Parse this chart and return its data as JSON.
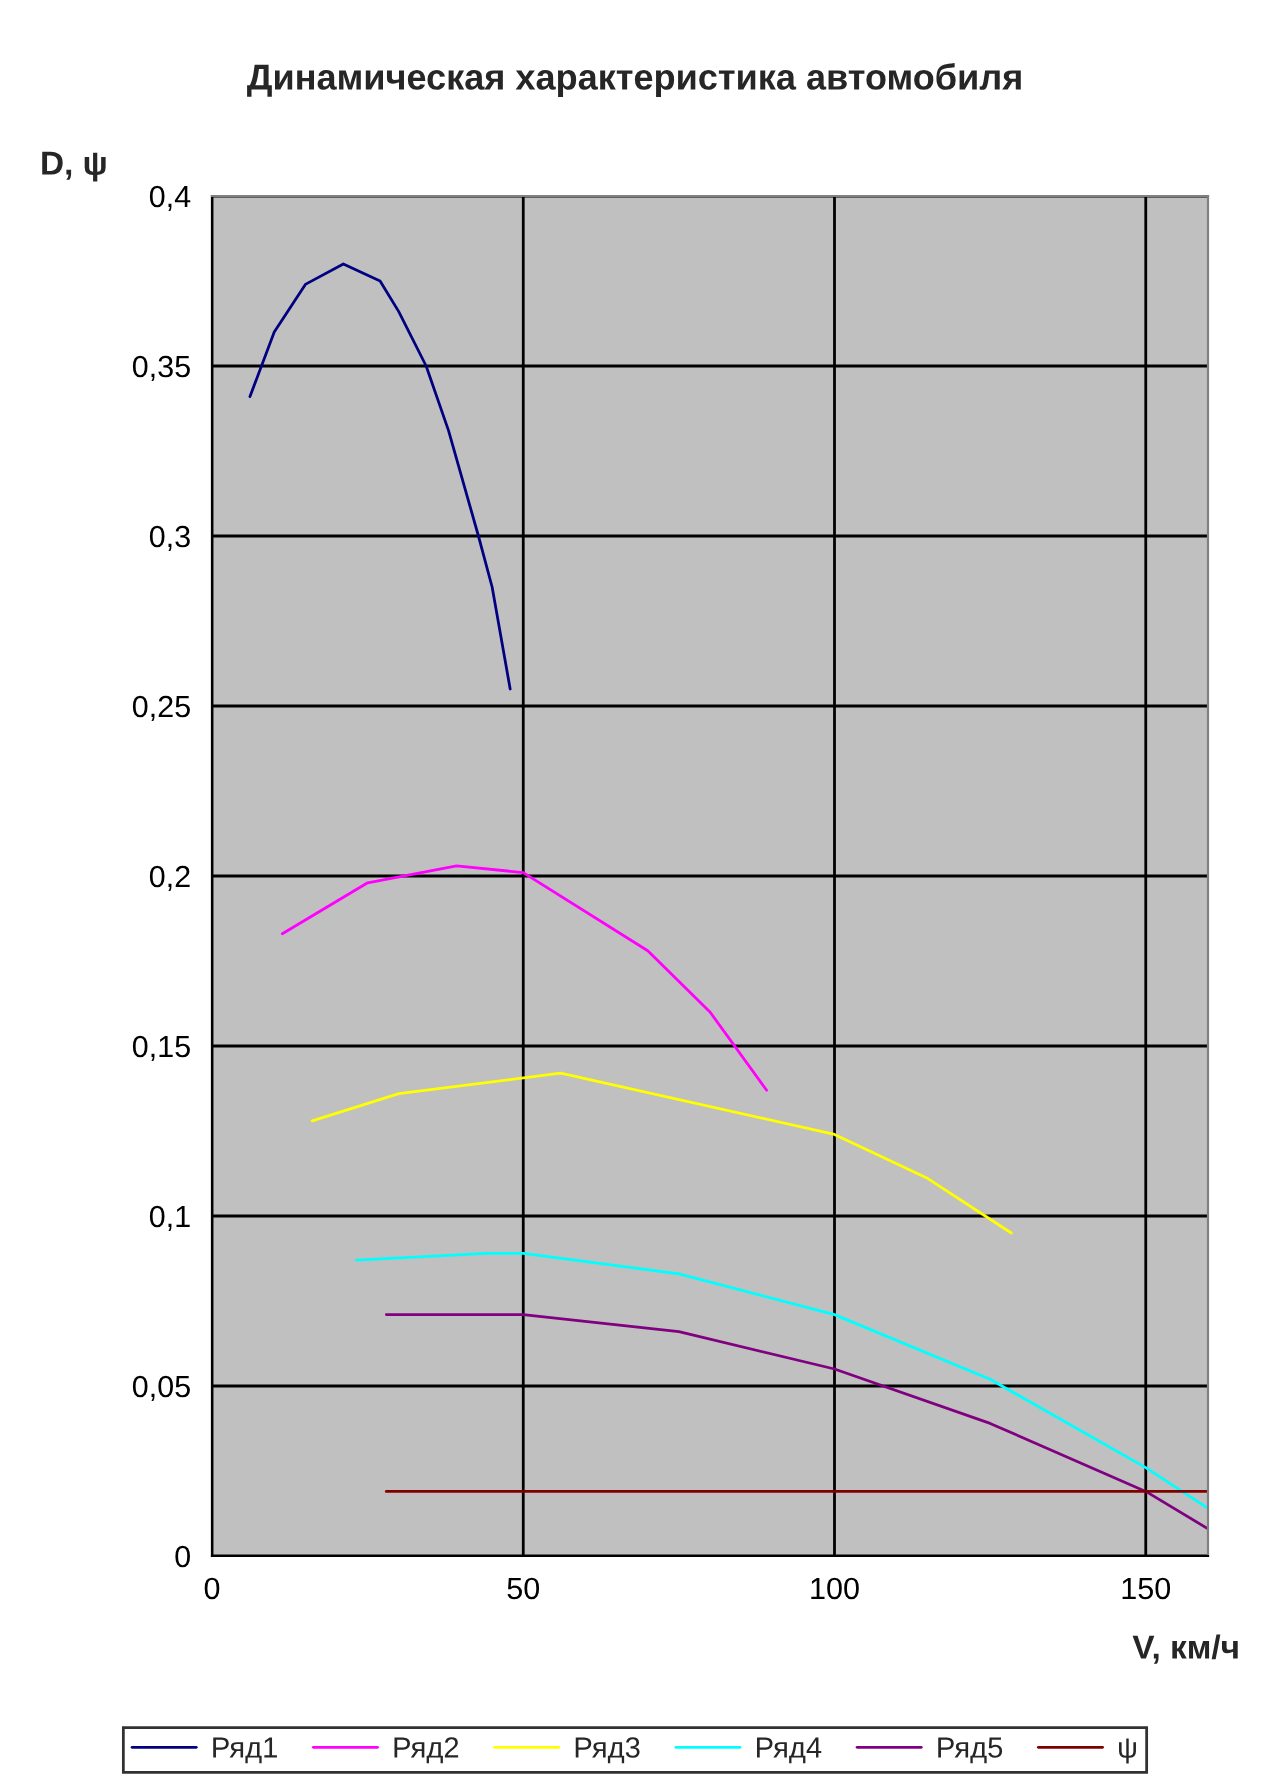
{
  "chart_data": {
    "type": "line",
    "title": "Динамическая характеристика автомобиля",
    "xlabel": "V, км/ч",
    "ylabel": "D, ψ",
    "xlim": [
      0,
      160
    ],
    "xticks": [
      0,
      50,
      100,
      150
    ],
    "ylim": [
      0,
      0.4
    ],
    "yticks": [
      0,
      {
        "value": 0.05,
        "label": "0,05"
      },
      {
        "value": 0.1,
        "label": "0,1"
      },
      {
        "value": 0.15,
        "label": "0,15"
      },
      {
        "value": 0.2,
        "label": "0,2"
      },
      {
        "value": 0.25,
        "label": "0,25"
      },
      {
        "value": 0.3,
        "label": "0,3"
      },
      {
        "value": 0.35,
        "label": "0,35"
      },
      {
        "value": 0.4,
        "label": "0,4"
      }
    ],
    "grid": true,
    "legend": "bottom",
    "marker": "none",
    "line_style": "solid",
    "series": [
      {
        "name": "Ряд1",
        "color": "#000080",
        "x": [
          6.1,
          10,
          15,
          21.1,
          27,
          30,
          34.4,
          38,
          42.8,
          45,
          47.9
        ],
        "values": [
          0.341,
          0.36,
          0.374,
          0.38,
          0.375,
          0.366,
          0.35,
          0.331,
          0.3,
          0.285,
          0.255
        ]
      },
      {
        "name": "Ряд2",
        "color": "#ff00ff",
        "x": [
          11.3,
          25,
          39.3,
          50,
          70,
          80,
          89.1
        ],
        "values": [
          0.183,
          0.198,
          0.203,
          0.201,
          0.178,
          0.16,
          0.137
        ]
      },
      {
        "name": "Ряд3",
        "color": "#ffff00",
        "x": [
          16.1,
          30,
          56,
          100,
          115,
          128.4
        ],
        "values": [
          0.128,
          0.136,
          0.142,
          0.124,
          0.111,
          0.095
        ]
      },
      {
        "name": "Ряд4",
        "color": "#00ffff",
        "x": [
          23.2,
          44.1,
          50,
          75,
          100,
          125,
          150,
          160
        ],
        "values": [
          0.087,
          0.089,
          0.089,
          0.083,
          0.071,
          0.052,
          0.026,
          0.014
        ]
      },
      {
        "name": "Ряд5",
        "color": "#800080",
        "x": [
          28,
          50,
          75,
          100,
          125,
          150,
          160
        ],
        "values": [
          0.071,
          0.071,
          0.066,
          0.055,
          0.039,
          0.019,
          0.008
        ]
      },
      {
        "name": "ψ",
        "color": "#800000",
        "x": [
          28,
          160
        ],
        "values": [
          0.019,
          0.019
        ]
      }
    ]
  }
}
